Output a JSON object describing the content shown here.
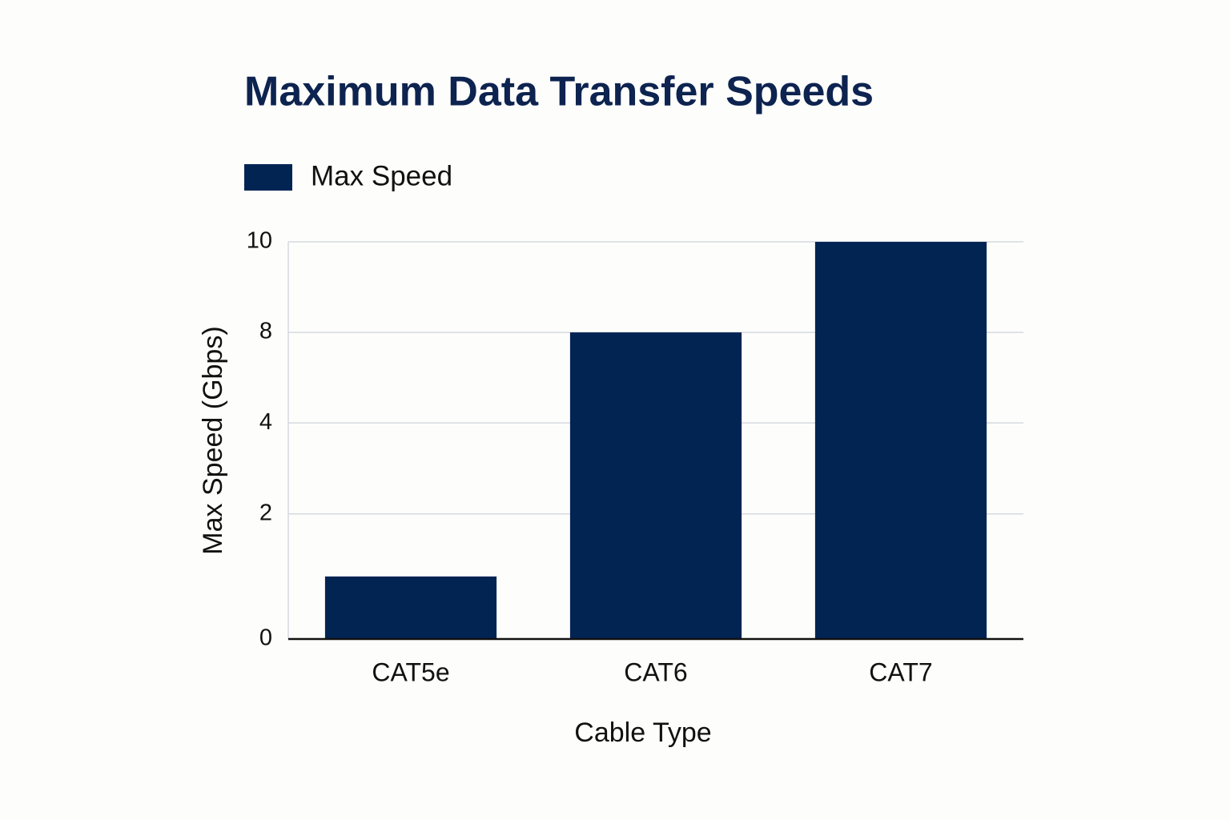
{
  "chart_data": {
    "type": "bar",
    "title": "Maximum Data Transfer Speeds",
    "legend": "Max Speed",
    "x_label": "Cable Type",
    "y_label": "Max Speed (Gbps)",
    "categories": [
      "CAT5e",
      "CAT6",
      "CAT7"
    ],
    "series": [
      {
        "name": "Max Speed",
        "color": "#022453",
        "values": [
          1,
          8,
          10
        ]
      }
    ],
    "ylim": [
      0,
      10
    ],
    "yticks": [
      0,
      2,
      4,
      8,
      10
    ],
    "grid": true
  }
}
